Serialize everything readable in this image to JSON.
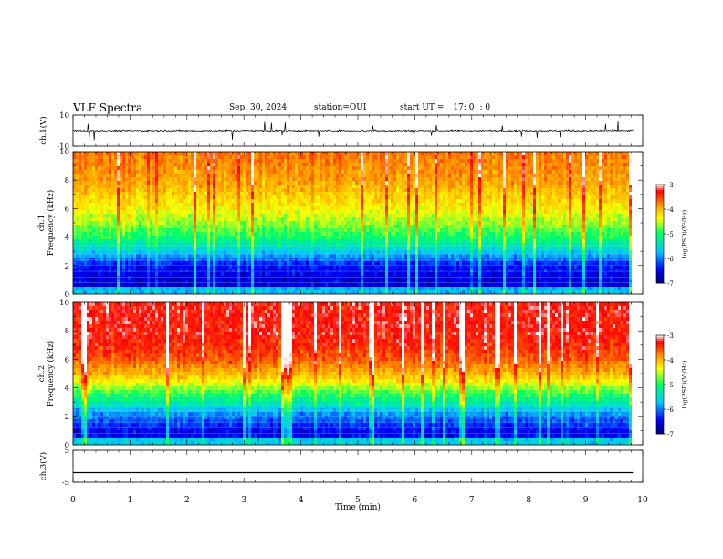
{
  "header": {
    "title": "VLF Spectra",
    "date": "Sep. 30, 2024",
    "station": "station=OUI",
    "start_label": "start  UT =",
    "start_time": "17: 0",
    "start_sec": ": 0"
  },
  "colors": {
    "colormap": [
      "#00007a",
      "#0000ff",
      "#00c8ff",
      "#00ff64",
      "#ffff00",
      "#ff8c00",
      "#ff0000",
      "#ffffff"
    ],
    "waveform": "#000000"
  },
  "chart_data": [
    {
      "type": "line",
      "name": "ch1-waveform",
      "ylabel": "ch.1(V)",
      "ylim": [
        -10,
        10
      ],
      "yticks": [
        "10",
        "-10"
      ],
      "xlim": [
        0,
        10
      ],
      "description_values": {
        "baseline": 0,
        "typical_amplitude": 1.0,
        "max_spike": 6
      }
    },
    {
      "type": "heatmap",
      "name": "ch1-spectrogram",
      "ylabel_line1": "ch.1",
      "ylabel_line2": "Frequency (kHz)",
      "ylim": [
        0,
        10
      ],
      "yticks": [
        "0",
        "2",
        "4",
        "6",
        "8",
        "10"
      ],
      "xlim": [
        0,
        9.83
      ],
      "log_psd_by_frequency": [
        [
          0,
          -6.5
        ],
        [
          1,
          -6.6
        ],
        [
          2,
          -6.4
        ],
        [
          3,
          -5.6
        ],
        [
          4,
          -5.0
        ],
        [
          5,
          -4.6
        ],
        [
          6,
          -4.3
        ],
        [
          7,
          -4.1
        ],
        [
          8,
          -3.9
        ],
        [
          9,
          -3.8
        ],
        [
          10,
          -3.7
        ]
      ],
      "colorbar": {
        "label": "log(PSD)(V²/Hz)",
        "ticks": [
          "-3",
          "-4",
          "-5",
          "-6",
          "-7"
        ],
        "range": [
          -7,
          -3
        ]
      }
    },
    {
      "type": "heatmap",
      "name": "ch2-spectrogram",
      "ylabel_line1": "ch.2",
      "ylabel_line2": "Frequency (kHz)",
      "ylim": [
        0,
        10
      ],
      "yticks": [
        "0",
        "2",
        "4",
        "6",
        "8",
        "10"
      ],
      "xlim": [
        0,
        9.83
      ],
      "log_psd_by_frequency": [
        [
          0,
          -6.4
        ],
        [
          1,
          -6.5
        ],
        [
          2,
          -6.0
        ],
        [
          3,
          -5.3
        ],
        [
          4,
          -4.6
        ],
        [
          5,
          -4.0
        ],
        [
          6,
          -3.6
        ],
        [
          7,
          -3.4
        ],
        [
          8,
          -3.3
        ],
        [
          9,
          -3.3
        ],
        [
          10,
          -3.3
        ]
      ],
      "colorbar": {
        "label": "log(PSD)(V²/Hz)",
        "ticks": [
          "-3",
          "-4",
          "-5",
          "-6",
          "-7"
        ],
        "range": [
          -7,
          -3
        ]
      }
    },
    {
      "type": "line",
      "name": "ch3-waveform",
      "ylabel": "ch.3(V)",
      "ylim": [
        -5,
        5
      ],
      "yticks": [
        "5",
        "-5"
      ],
      "xlim": [
        0,
        10
      ],
      "x": [
        0,
        9.83
      ],
      "y": [
        -2,
        -2
      ]
    }
  ],
  "xaxis": {
    "label": "Time  (min)",
    "ticks": [
      "0",
      "1",
      "2",
      "3",
      "4",
      "5",
      "6",
      "7",
      "8",
      "9",
      "10"
    ]
  }
}
